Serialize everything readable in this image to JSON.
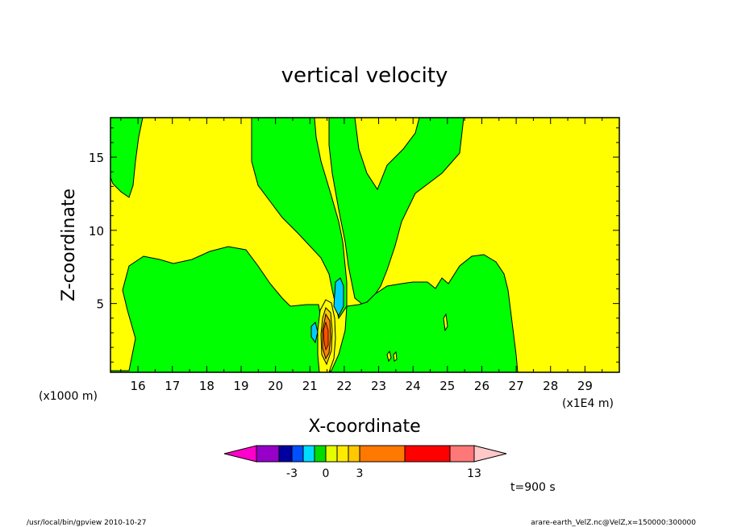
{
  "chart_data": {
    "type": "contour",
    "title": "vertical velocity",
    "xlabel": "X-coordinate",
    "ylabel": "Z-coordinate",
    "x_unit_left": "(x1000 m)",
    "x_unit_right": "(x1E4 m)",
    "x_ticks": [
      "16",
      "17",
      "18",
      "19",
      "20",
      "21",
      "22",
      "23",
      "24",
      "25",
      "26",
      "27",
      "28",
      "29"
    ],
    "y_ticks": [
      "5",
      "10",
      "15"
    ],
    "xlim": [
      15.2,
      30
    ],
    "ylim": [
      0.3,
      17.7
    ],
    "time_label": "t=900 s",
    "colorbar": {
      "labels": [
        {
          "text": "-3",
          "at": -3
        },
        {
          "text": "0",
          "at": 0
        },
        {
          "text": "3",
          "at": 3
        },
        {
          "text": "13",
          "at": 13
        }
      ],
      "colors": [
        "#ff00cc",
        "#9600c8",
        "#0000a0",
        "#0050ff",
        "#00dcff",
        "#00dc00",
        "#e6ff00",
        "#ffeb00",
        "#ffc800",
        "#ff7800",
        "#ff0000",
        "#ff7878",
        "#ffc8c8"
      ]
    },
    "colors": {
      "negative_small": "#00ff00",
      "background_positive": "#ffff00",
      "weak_negative": "#00ccff",
      "strong_positive": "#ff8000"
    }
  },
  "footer": {
    "left": "/usr/local/bin/gpview   2010-10-27",
    "right": "arare-earth_VelZ.nc@VelZ,x=150000:300000"
  }
}
